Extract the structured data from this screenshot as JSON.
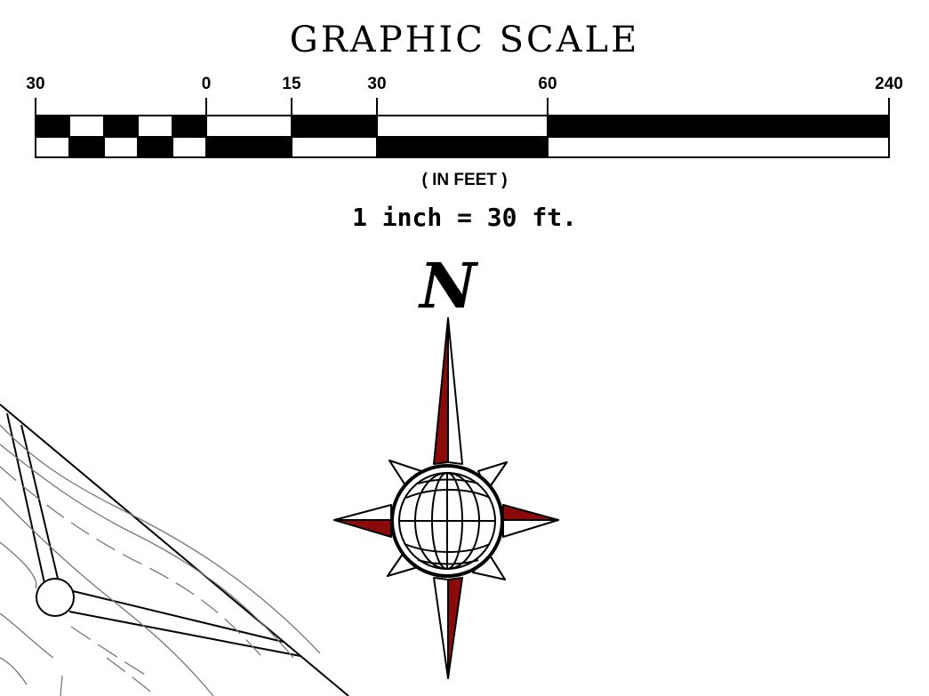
{
  "graphic_scale": {
    "title": "GRAPHIC SCALE",
    "tick_labels": [
      "30",
      "0",
      "15",
      "30",
      "60",
      "240"
    ],
    "units_label": "( IN FEET )",
    "ratio": "1 inch = 30 ft."
  },
  "north_arrow": {
    "label": "N",
    "accent_color": "#8b0a0a"
  }
}
